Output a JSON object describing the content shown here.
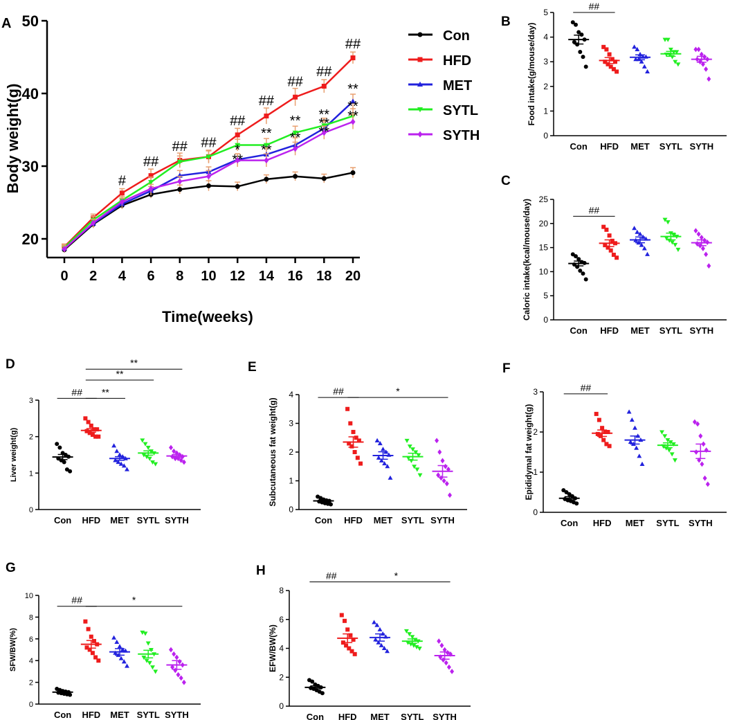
{
  "figure": {
    "groups": [
      "Con",
      "HFD",
      "MET",
      "SYTL",
      "SYTH"
    ],
    "colors": {
      "Con": "#000000",
      "HFD": "#ee1c1c",
      "MET": "#2222dd",
      "SYTL": "#22ee22",
      "SYTH": "#bb22ee"
    },
    "err_color": "#e8a070"
  },
  "chart_data": [
    {
      "id": "A",
      "type": "line",
      "panel_label": "A",
      "title": "",
      "xlabel": "Time(weeks)",
      "ylabel": "Body weight(g)",
      "xlim": [
        0,
        20
      ],
      "ylim": [
        17,
        50
      ],
      "x": [
        0,
        2,
        4,
        6,
        8,
        10,
        12,
        14,
        16,
        18,
        20
      ],
      "xticks": [
        0,
        2,
        4,
        6,
        8,
        10,
        12,
        14,
        16,
        18,
        20
      ],
      "yticks": [
        20,
        30,
        40,
        50
      ],
      "series": [
        {
          "name": "Con",
          "values": [
            18.5,
            22.0,
            24.6,
            26.1,
            26.8,
            27.3,
            27.2,
            28.2,
            28.6,
            28.3,
            29.1
          ],
          "err": [
            0.4,
            0.5,
            0.5,
            0.5,
            0.6,
            0.7,
            0.6,
            0.6,
            0.6,
            0.6,
            0.7
          ]
        },
        {
          "name": "HFD",
          "values": [
            18.9,
            22.9,
            26.3,
            28.7,
            30.8,
            31.3,
            34.3,
            36.9,
            39.5,
            41.0,
            44.9
          ],
          "err": [
            0.4,
            0.5,
            0.6,
            0.9,
            1.0,
            0.9,
            0.9,
            1.1,
            1.2,
            0.9,
            0.8
          ]
        },
        {
          "name": "MET",
          "values": [
            18.7,
            22.1,
            24.8,
            26.6,
            28.7,
            29.2,
            30.9,
            31.6,
            32.9,
            35.2,
            38.9
          ],
          "err": [
            0.4,
            0.6,
            0.5,
            0.6,
            0.7,
            0.7,
            0.8,
            0.9,
            1.0,
            1.0,
            1.0
          ]
        },
        {
          "name": "SYTL",
          "values": [
            18.8,
            22.6,
            25.3,
            27.8,
            30.6,
            31.3,
            32.9,
            32.9,
            34.6,
            35.6,
            36.9
          ],
          "err": [
            0.4,
            0.5,
            0.5,
            0.7,
            0.8,
            0.8,
            0.8,
            0.9,
            0.9,
            1.0,
            1.0
          ]
        },
        {
          "name": "SYTH",
          "values": [
            18.6,
            22.2,
            25.1,
            26.9,
            27.9,
            28.6,
            30.8,
            30.8,
            32.4,
            34.6,
            36.1
          ],
          "err": [
            0.4,
            0.5,
            0.5,
            0.6,
            0.7,
            0.8,
            0.9,
            0.9,
            0.9,
            0.9,
            1.0
          ]
        }
      ],
      "annotations": [
        {
          "text": "#",
          "x": 4,
          "y": 27.4
        },
        {
          "text": "##",
          "x": 6,
          "y": 30.0
        },
        {
          "text": "##",
          "x": 8,
          "y": 32.1
        },
        {
          "text": "##",
          "x": 10,
          "y": 32.6
        },
        {
          "text": "##",
          "x": 12,
          "y": 35.6
        },
        {
          "text": "##",
          "x": 14,
          "y": 38.4
        },
        {
          "text": "##",
          "x": 16,
          "y": 41.0
        },
        {
          "text": "##",
          "x": 18,
          "y": 42.4
        },
        {
          "text": "##",
          "x": 20,
          "y": 46.2
        },
        {
          "text": "*",
          "x": 12,
          "y": 31.6
        },
        {
          "text": "**",
          "x": 12,
          "y": 30.3
        },
        {
          "text": "**",
          "x": 14,
          "y": 33.9
        },
        {
          "text": "**",
          "x": 14,
          "y": 31.6
        },
        {
          "text": "**",
          "x": 16,
          "y": 35.6
        },
        {
          "text": "**",
          "x": 16,
          "y": 33.3
        },
        {
          "text": "**",
          "x": 18,
          "y": 36.5
        },
        {
          "text": "**",
          "x": 18,
          "y": 35.3
        },
        {
          "text": "**",
          "x": 18,
          "y": 34.1
        },
        {
          "text": "**",
          "x": 20,
          "y": 40.0
        },
        {
          "text": "**",
          "x": 20,
          "y": 37.6
        },
        {
          "text": "**",
          "x": 20,
          "y": 36.3
        }
      ],
      "legend": [
        "Con",
        "HFD",
        "MET",
        "SYTL",
        "SYTH"
      ]
    },
    {
      "id": "B",
      "type": "scatter",
      "panel_label": "B",
      "ylabel": "Food intake(g/mouse/day)",
      "ylim": [
        0,
        5
      ],
      "yticks": [
        0,
        1,
        2,
        3,
        4,
        5
      ],
      "categories": [
        "Con",
        "HFD",
        "MET",
        "SYTL",
        "SYTH"
      ],
      "means": [
        3.9,
        3.05,
        3.18,
        3.32,
        3.1
      ],
      "sem": [
        0.18,
        0.12,
        0.1,
        0.1,
        0.12
      ],
      "points": [
        [
          4.6,
          4.5,
          4.2,
          4.1,
          3.9,
          3.8,
          3.7,
          3.4,
          3.2,
          2.8
        ],
        [
          3.6,
          3.5,
          3.3,
          3.1,
          3.0,
          3.0,
          2.9,
          2.8,
          2.7,
          2.6
        ],
        [
          3.6,
          3.5,
          3.3,
          3.2,
          3.2,
          3.1,
          3.1,
          3.0,
          2.8,
          2.6
        ],
        [
          3.9,
          3.9,
          3.5,
          3.4,
          3.4,
          3.3,
          3.3,
          3.2,
          3.0,
          2.9
        ],
        [
          3.5,
          3.5,
          3.3,
          3.2,
          3.1,
          3.1,
          3.0,
          2.9,
          2.7,
          2.3
        ]
      ],
      "brackets": [
        {
          "from": 0,
          "to": 1,
          "label": "##",
          "y": 5.0
        }
      ]
    },
    {
      "id": "C",
      "type": "scatter",
      "panel_label": "C",
      "ylabel": "Caloric intake(kcal/mouse/day)",
      "ylim": [
        0,
        25
      ],
      "yticks": [
        0,
        5,
        10,
        15,
        20,
        25
      ],
      "categories": [
        "Con",
        "HFD",
        "MET",
        "SYTL",
        "SYTH"
      ],
      "means": [
        11.7,
        15.9,
        16.6,
        17.3,
        16.0
      ],
      "sem": [
        0.5,
        0.7,
        0.6,
        0.7,
        0.6
      ],
      "points": [
        [
          13.6,
          13.2,
          12.6,
          12.0,
          11.8,
          11.5,
          11.0,
          10.2,
          9.6,
          8.4
        ],
        [
          19.3,
          18.7,
          17.5,
          16.4,
          15.9,
          15.5,
          15.0,
          14.4,
          13.5,
          12.9
        ],
        [
          19.0,
          18.2,
          17.8,
          17.2,
          16.8,
          16.5,
          16.0,
          15.5,
          14.8,
          13.6
        ],
        [
          20.8,
          20.3,
          18.0,
          17.6,
          17.3,
          17.0,
          16.5,
          16.1,
          15.6,
          14.6
        ],
        [
          18.5,
          17.8,
          17.1,
          16.5,
          16.1,
          15.8,
          15.4,
          14.8,
          13.6,
          11.2
        ]
      ],
      "brackets": [
        {
          "from": 0,
          "to": 1,
          "label": "##",
          "y": 21.5
        }
      ]
    },
    {
      "id": "D",
      "type": "scatter",
      "panel_label": "D",
      "ylabel": "Liver weight(g)",
      "ylim": [
        0,
        3
      ],
      "yticks": [
        0,
        1,
        2,
        3
      ],
      "categories": [
        "Con",
        "HFD",
        "MET",
        "SYTL",
        "SYTH"
      ],
      "means": [
        1.44,
        2.17,
        1.4,
        1.55,
        1.47
      ],
      "sem": [
        0.07,
        0.05,
        0.05,
        0.06,
        0.04
      ],
      "points": [
        [
          1.8,
          1.7,
          1.55,
          1.5,
          1.45,
          1.4,
          1.35,
          1.3,
          1.1,
          1.05
        ],
        [
          2.5,
          2.4,
          2.3,
          2.2,
          2.2,
          2.15,
          2.1,
          2.05,
          2.0,
          2.0
        ],
        [
          1.75,
          1.6,
          1.5,
          1.45,
          1.4,
          1.35,
          1.3,
          1.25,
          1.2,
          1.1
        ],
        [
          1.9,
          1.8,
          1.7,
          1.6,
          1.55,
          1.5,
          1.45,
          1.4,
          1.3,
          1.25
        ],
        [
          1.7,
          1.6,
          1.55,
          1.5,
          1.45,
          1.45,
          1.4,
          1.4,
          1.35,
          1.3
        ]
      ],
      "brackets": [
        {
          "from": 0,
          "to": 1,
          "label": "##",
          "y": 3.05
        },
        {
          "from": 1,
          "to": 2,
          "label": "**",
          "y": 3.05
        },
        {
          "from": 1,
          "to": 3,
          "label": "**",
          "y": 3.55
        },
        {
          "from": 1,
          "to": 4,
          "label": "**",
          "y": 3.85
        }
      ]
    },
    {
      "id": "E",
      "type": "scatter",
      "panel_label": "E",
      "ylabel": "Subcutaneous fat weight(g)",
      "ylim": [
        0,
        4
      ],
      "yticks": [
        0,
        1,
        2,
        3,
        4
      ],
      "categories": [
        "Con",
        "HFD",
        "MET",
        "SYTL",
        "SYTH"
      ],
      "means": [
        0.3,
        2.35,
        1.88,
        1.84,
        1.33
      ],
      "sem": [
        0.03,
        0.18,
        0.13,
        0.12,
        0.2
      ],
      "points": [
        [
          0.45,
          0.4,
          0.35,
          0.32,
          0.3,
          0.28,
          0.25,
          0.22,
          0.2,
          0.18
        ],
        [
          3.5,
          3.0,
          2.7,
          2.5,
          2.4,
          2.3,
          2.2,
          2.0,
          1.8,
          1.6
        ],
        [
          2.4,
          2.3,
          2.1,
          2.0,
          1.9,
          1.8,
          1.7,
          1.6,
          1.5,
          1.1
        ],
        [
          2.4,
          2.2,
          2.1,
          2.0,
          1.9,
          1.8,
          1.7,
          1.5,
          1.4,
          1.2
        ],
        [
          2.4,
          2.0,
          1.7,
          1.5,
          1.4,
          1.2,
          1.1,
          1.0,
          0.9,
          0.5
        ]
      ],
      "brackets": [
        {
          "from": 0,
          "to": 1,
          "label": "##",
          "y": 3.9
        },
        {
          "from": 1,
          "to": 4,
          "label": "*",
          "y": 3.9
        }
      ]
    },
    {
      "id": "F",
      "type": "scatter",
      "panel_label": "F",
      "ylabel": "Epididymal fat weight(g)",
      "ylim": [
        0,
        3
      ],
      "yticks": [
        0,
        1,
        2,
        3
      ],
      "categories": [
        "Con",
        "HFD",
        "MET",
        "SYTL",
        "SYTH"
      ],
      "means": [
        0.35,
        1.97,
        1.8,
        1.67,
        1.52
      ],
      "sem": [
        0.04,
        0.08,
        0.1,
        0.06,
        0.18
      ],
      "points": [
        [
          0.55,
          0.5,
          0.45,
          0.4,
          0.35,
          0.33,
          0.3,
          0.28,
          0.25,
          0.22
        ],
        [
          2.45,
          2.3,
          2.1,
          2.0,
          2.0,
          1.95,
          1.9,
          1.8,
          1.7,
          1.65
        ],
        [
          2.5,
          2.3,
          2.1,
          1.9,
          1.8,
          1.75,
          1.7,
          1.6,
          1.4,
          1.2
        ],
        [
          2.0,
          1.9,
          1.8,
          1.75,
          1.7,
          1.65,
          1.6,
          1.55,
          1.45,
          1.3
        ],
        [
          2.25,
          2.2,
          1.9,
          1.7,
          1.55,
          1.5,
          1.3,
          1.2,
          0.85,
          0.7
        ]
      ],
      "brackets": [
        {
          "from": 0,
          "to": 1,
          "label": "##",
          "y": 2.95
        }
      ]
    },
    {
      "id": "G",
      "type": "scatter",
      "panel_label": "G",
      "ylabel": "SFW/BW(%)",
      "ylim": [
        0,
        10
      ],
      "yticks": [
        0,
        2,
        4,
        6,
        8,
        10
      ],
      "categories": [
        "Con",
        "HFD",
        "MET",
        "SYTL",
        "SYTH"
      ],
      "means": [
        1.1,
        5.5,
        4.8,
        4.6,
        3.6
      ],
      "sem": [
        0.08,
        0.35,
        0.3,
        0.35,
        0.4
      ],
      "points": [
        [
          1.4,
          1.3,
          1.2,
          1.15,
          1.1,
          1.05,
          1.0,
          0.95,
          0.9,
          0.85
        ],
        [
          7.6,
          6.9,
          6.2,
          5.8,
          5.5,
          5.2,
          5.0,
          4.7,
          4.3,
          4.0
        ],
        [
          6.1,
          5.7,
          5.3,
          5.0,
          4.9,
          4.7,
          4.5,
          4.2,
          3.9,
          3.5
        ],
        [
          6.6,
          6.5,
          5.6,
          5.0,
          4.6,
          4.3,
          4.0,
          3.8,
          3.4,
          3.0
        ],
        [
          5.0,
          4.6,
          4.3,
          3.9,
          3.6,
          3.4,
          3.1,
          2.7,
          2.4,
          2.0
        ]
      ],
      "brackets": [
        {
          "from": 0,
          "to": 1,
          "label": "##",
          "y": 9.0
        },
        {
          "from": 1,
          "to": 4,
          "label": "*",
          "y": 9.0
        }
      ]
    },
    {
      "id": "H",
      "type": "scatter",
      "panel_label": "H",
      "ylabel": "EFW/BW(%)",
      "ylim": [
        0,
        8
      ],
      "yticks": [
        0,
        2,
        4,
        6,
        8
      ],
      "categories": [
        "Con",
        "HFD",
        "MET",
        "SYTL",
        "SYTH"
      ],
      "means": [
        1.3,
        4.7,
        4.75,
        4.5,
        3.5
      ],
      "sem": [
        0.1,
        0.3,
        0.25,
        0.15,
        0.25
      ],
      "points": [
        [
          1.8,
          1.7,
          1.5,
          1.4,
          1.3,
          1.25,
          1.2,
          1.1,
          1.0,
          0.9
        ],
        [
          6.3,
          5.9,
          5.3,
          4.9,
          4.6,
          4.4,
          4.2,
          4.0,
          3.8,
          3.6
        ],
        [
          5.8,
          5.6,
          5.3,
          5.0,
          4.8,
          4.6,
          4.4,
          4.2,
          4.0,
          3.8
        ],
        [
          5.2,
          5.0,
          4.8,
          4.6,
          4.5,
          4.4,
          4.3,
          4.2,
          4.1,
          4.0
        ],
        [
          4.5,
          4.2,
          3.9,
          3.7,
          3.6,
          3.4,
          3.2,
          3.0,
          2.7,
          2.4
        ]
      ],
      "brackets": [
        {
          "from": 0,
          "to": 1,
          "label": "##",
          "y": 8.6
        },
        {
          "from": 1,
          "to": 4,
          "label": "*",
          "y": 8.6
        }
      ]
    }
  ]
}
